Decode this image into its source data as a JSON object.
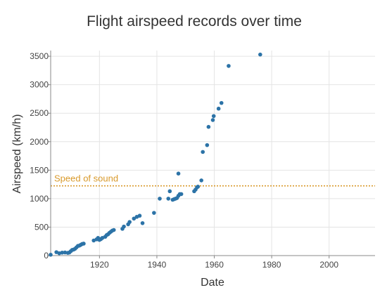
{
  "chart_data": {
    "type": "scatter",
    "title": "Flight airspeed records over time",
    "xlabel": "Date",
    "ylabel": "Airspeed (km/h)",
    "xlim": [
      1903,
      2016
    ],
    "ylim": [
      0,
      3600
    ],
    "xticks": [
      1920,
      1940,
      1960,
      1980,
      2000
    ],
    "yticks": [
      0,
      500,
      1000,
      1500,
      2000,
      2500,
      3000,
      3500
    ],
    "grid": true,
    "point_color": "#2c73a7",
    "reference_line": {
      "label": "Speed of sound",
      "y": 1225,
      "color": "#d99a2b",
      "style": "dotted"
    },
    "points": [
      [
        1903,
        15
      ],
      [
        1905,
        60
      ],
      [
        1906,
        41
      ],
      [
        1907,
        52
      ],
      [
        1908,
        55
      ],
      [
        1909,
        48
      ],
      [
        1909.5,
        54
      ],
      [
        1910,
        77
      ],
      [
        1910.5,
        100
      ],
      [
        1911,
        106
      ],
      [
        1911.5,
        120
      ],
      [
        1912,
        145
      ],
      [
        1912.5,
        170
      ],
      [
        1913,
        175
      ],
      [
        1913.5,
        190
      ],
      [
        1914,
        205
      ],
      [
        1914.5,
        210
      ],
      [
        1918,
        265
      ],
      [
        1919,
        285
      ],
      [
        1919.5,
        310
      ],
      [
        1920,
        275
      ],
      [
        1920.5,
        290
      ],
      [
        1921,
        310
      ],
      [
        1922,
        330
      ],
      [
        1922.5,
        360
      ],
      [
        1923,
        375
      ],
      [
        1923.5,
        400
      ],
      [
        1924,
        420
      ],
      [
        1924.5,
        440
      ],
      [
        1925,
        450
      ],
      [
        1928,
        470
      ],
      [
        1928.5,
        510
      ],
      [
        1930,
        550
      ],
      [
        1930.5,
        590
      ],
      [
        1932,
        650
      ],
      [
        1933,
        680
      ],
      [
        1934,
        700
      ],
      [
        1935,
        570
      ],
      [
        1939,
        750
      ],
      [
        1941,
        1000
      ],
      [
        1944,
        1000
      ],
      [
        1944.5,
        1130
      ],
      [
        1945.5,
        980
      ],
      [
        1946,
        990
      ],
      [
        1946.5,
        1000
      ],
      [
        1947,
        1010
      ],
      [
        1947.5,
        1050
      ],
      [
        1948,
        1080
      ],
      [
        1948.5,
        1080
      ],
      [
        1947.5,
        1440
      ],
      [
        1953,
        1130
      ],
      [
        1953.5,
        1160
      ],
      [
        1954,
        1200
      ],
      [
        1954.3,
        1210
      ],
      [
        1955.5,
        1320
      ],
      [
        1956,
        1820
      ],
      [
        1957.5,
        1940
      ],
      [
        1958,
        2260
      ],
      [
        1959.5,
        2380
      ],
      [
        1959.8,
        2450
      ],
      [
        1961.5,
        2580
      ],
      [
        1962.5,
        2680
      ],
      [
        1965,
        3330
      ],
      [
        1976,
        3530
      ]
    ]
  }
}
